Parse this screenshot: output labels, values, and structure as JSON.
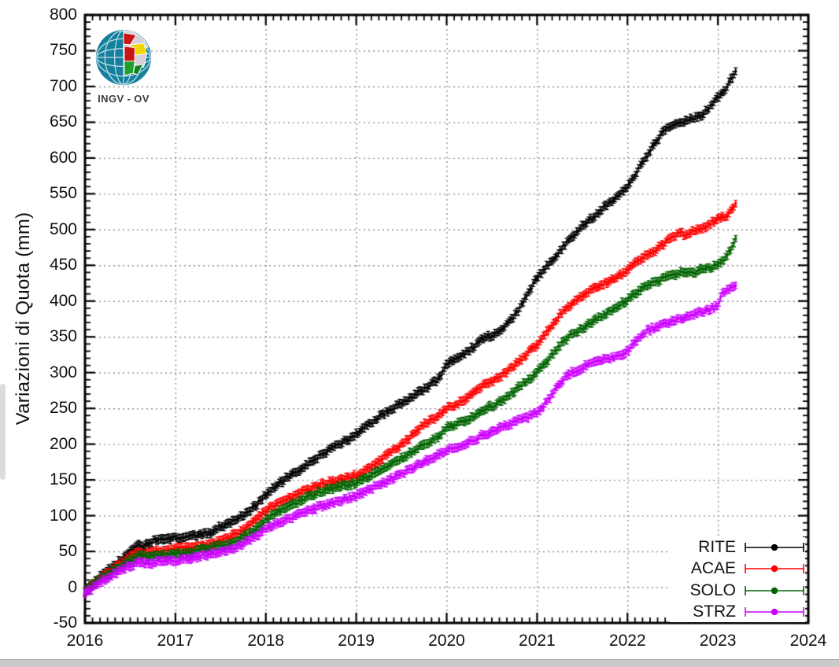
{
  "page": {
    "background": "#ffffff",
    "bottom_bar_color": "#cacaca",
    "scrollbar_color": "#dcdcdc"
  },
  "logo": {
    "text": "INGV - OV"
  },
  "chart_data": {
    "type": "scatter",
    "title": "",
    "xlabel": "",
    "ylabel": "Variazioni di Quota (mm)",
    "xlim": [
      2016,
      2024
    ],
    "ylim": [
      -50,
      800
    ],
    "x_ticks": [
      2016,
      2017,
      2018,
      2019,
      2020,
      2021,
      2022,
      2023,
      2024
    ],
    "y_ticks": [
      -50,
      0,
      50,
      100,
      150,
      200,
      250,
      300,
      350,
      400,
      450,
      500,
      550,
      600,
      650,
      700,
      750,
      800
    ],
    "x_minor_divisions": 12,
    "y_minor_divisions": 5,
    "grid": true,
    "grid_color": "#8e8e8e",
    "frame_color": "#000000",
    "legend_position": "bottom-right-inside",
    "marker_style": "point with vertical error bar (~±5 mm)",
    "series": [
      {
        "name": "RITE",
        "color": "#000000",
        "points": [
          [
            2016.0,
            -5
          ],
          [
            2016.1,
            6
          ],
          [
            2016.2,
            18
          ],
          [
            2016.3,
            28
          ],
          [
            2016.4,
            38
          ],
          [
            2016.5,
            50
          ],
          [
            2016.58,
            60
          ],
          [
            2016.64,
            56
          ],
          [
            2016.72,
            63
          ],
          [
            2016.8,
            66
          ],
          [
            2016.9,
            68
          ],
          [
            2017.0,
            69
          ],
          [
            2017.1,
            70
          ],
          [
            2017.2,
            72
          ],
          [
            2017.3,
            74
          ],
          [
            2017.4,
            77
          ],
          [
            2017.5,
            85
          ],
          [
            2017.6,
            90
          ],
          [
            2017.7,
            97
          ],
          [
            2017.8,
            105
          ],
          [
            2017.9,
            116
          ],
          [
            2018.0,
            130
          ],
          [
            2018.1,
            140
          ],
          [
            2018.2,
            150
          ],
          [
            2018.3,
            158
          ],
          [
            2018.4,
            166
          ],
          [
            2018.5,
            175
          ],
          [
            2018.6,
            184
          ],
          [
            2018.7,
            192
          ],
          [
            2018.8,
            199
          ],
          [
            2018.9,
            206
          ],
          [
            2019.0,
            214
          ],
          [
            2019.1,
            224
          ],
          [
            2019.2,
            233
          ],
          [
            2019.3,
            242
          ],
          [
            2019.4,
            250
          ],
          [
            2019.5,
            257
          ],
          [
            2019.6,
            265
          ],
          [
            2019.7,
            273
          ],
          [
            2019.8,
            281
          ],
          [
            2019.9,
            290
          ],
          [
            2019.95,
            300
          ],
          [
            2020.0,
            312
          ],
          [
            2020.1,
            320
          ],
          [
            2020.2,
            327
          ],
          [
            2020.3,
            336
          ],
          [
            2020.4,
            348
          ],
          [
            2020.5,
            352
          ],
          [
            2020.6,
            358
          ],
          [
            2020.7,
            372
          ],
          [
            2020.8,
            388
          ],
          [
            2020.9,
            410
          ],
          [
            2021.0,
            433
          ],
          [
            2021.1,
            448
          ],
          [
            2021.2,
            462
          ],
          [
            2021.3,
            478
          ],
          [
            2021.4,
            492
          ],
          [
            2021.5,
            505
          ],
          [
            2021.6,
            515
          ],
          [
            2021.7,
            527
          ],
          [
            2021.8,
            538
          ],
          [
            2021.9,
            548
          ],
          [
            2022.0,
            561
          ],
          [
            2022.1,
            580
          ],
          [
            2022.2,
            600
          ],
          [
            2022.3,
            620
          ],
          [
            2022.4,
            638
          ],
          [
            2022.5,
            648
          ],
          [
            2022.6,
            650
          ],
          [
            2022.7,
            655
          ],
          [
            2022.8,
            658
          ],
          [
            2022.9,
            670
          ],
          [
            2023.0,
            686
          ],
          [
            2023.05,
            690
          ],
          [
            2023.1,
            700
          ],
          [
            2023.15,
            712
          ],
          [
            2023.2,
            722
          ]
        ]
      },
      {
        "name": "ACAE",
        "color": "#ff0000",
        "points": [
          [
            2016.0,
            -5
          ],
          [
            2016.1,
            5
          ],
          [
            2016.2,
            15
          ],
          [
            2016.3,
            24
          ],
          [
            2016.4,
            33
          ],
          [
            2016.5,
            42
          ],
          [
            2016.58,
            50
          ],
          [
            2016.65,
            46
          ],
          [
            2016.75,
            49
          ],
          [
            2016.9,
            52
          ],
          [
            2017.0,
            54
          ],
          [
            2017.2,
            56
          ],
          [
            2017.4,
            60
          ],
          [
            2017.5,
            65
          ],
          [
            2017.6,
            70
          ],
          [
            2017.7,
            76
          ],
          [
            2017.8,
            84
          ],
          [
            2017.9,
            95
          ],
          [
            2018.0,
            108
          ],
          [
            2018.2,
            122
          ],
          [
            2018.4,
            133
          ],
          [
            2018.5,
            138
          ],
          [
            2018.6,
            143
          ],
          [
            2018.8,
            150
          ],
          [
            2019.0,
            156
          ],
          [
            2019.2,
            172
          ],
          [
            2019.4,
            190
          ],
          [
            2019.5,
            200
          ],
          [
            2019.6,
            210
          ],
          [
            2019.7,
            222
          ],
          [
            2019.8,
            232
          ],
          [
            2019.9,
            238
          ],
          [
            2019.95,
            245
          ],
          [
            2020.0,
            250
          ],
          [
            2020.1,
            255
          ],
          [
            2020.2,
            262
          ],
          [
            2020.3,
            272
          ],
          [
            2020.4,
            282
          ],
          [
            2020.5,
            288
          ],
          [
            2020.6,
            295
          ],
          [
            2020.7,
            305
          ],
          [
            2020.8,
            315
          ],
          [
            2020.9,
            328
          ],
          [
            2021.0,
            340
          ],
          [
            2021.1,
            355
          ],
          [
            2021.2,
            372
          ],
          [
            2021.3,
            388
          ],
          [
            2021.4,
            398
          ],
          [
            2021.5,
            408
          ],
          [
            2021.6,
            415
          ],
          [
            2021.7,
            422
          ],
          [
            2021.8,
            428
          ],
          [
            2021.9,
            435
          ],
          [
            2022.0,
            443
          ],
          [
            2022.1,
            455
          ],
          [
            2022.2,
            463
          ],
          [
            2022.3,
            470
          ],
          [
            2022.4,
            480
          ],
          [
            2022.5,
            490
          ],
          [
            2022.6,
            495
          ],
          [
            2022.65,
            492
          ],
          [
            2022.7,
            497
          ],
          [
            2022.8,
            500
          ],
          [
            2022.9,
            507
          ],
          [
            2023.0,
            515
          ],
          [
            2023.1,
            520
          ],
          [
            2023.15,
            528
          ],
          [
            2023.2,
            536
          ]
        ]
      },
      {
        "name": "SOLO",
        "color": "#006400",
        "points": [
          [
            2016.0,
            -6
          ],
          [
            2016.1,
            4
          ],
          [
            2016.2,
            13
          ],
          [
            2016.3,
            21
          ],
          [
            2016.4,
            30
          ],
          [
            2016.5,
            38
          ],
          [
            2016.6,
            44
          ],
          [
            2016.7,
            42
          ],
          [
            2016.8,
            44
          ],
          [
            2017.0,
            46
          ],
          [
            2017.2,
            50
          ],
          [
            2017.4,
            55
          ],
          [
            2017.5,
            58
          ],
          [
            2017.6,
            62
          ],
          [
            2017.7,
            67
          ],
          [
            2017.8,
            73
          ],
          [
            2017.9,
            83
          ],
          [
            2018.0,
            95
          ],
          [
            2018.2,
            110
          ],
          [
            2018.4,
            122
          ],
          [
            2018.5,
            128
          ],
          [
            2018.6,
            133
          ],
          [
            2018.8,
            140
          ],
          [
            2019.0,
            146
          ],
          [
            2019.2,
            158
          ],
          [
            2019.4,
            172
          ],
          [
            2019.5,
            180
          ],
          [
            2019.6,
            188
          ],
          [
            2019.7,
            196
          ],
          [
            2019.8,
            203
          ],
          [
            2019.9,
            210
          ],
          [
            2020.0,
            222
          ],
          [
            2020.1,
            228
          ],
          [
            2020.2,
            232
          ],
          [
            2020.3,
            240
          ],
          [
            2020.4,
            248
          ],
          [
            2020.5,
            253
          ],
          [
            2020.6,
            260
          ],
          [
            2020.7,
            270
          ],
          [
            2020.8,
            280
          ],
          [
            2020.9,
            290
          ],
          [
            2021.0,
            300
          ],
          [
            2021.1,
            315
          ],
          [
            2021.2,
            330
          ],
          [
            2021.3,
            345
          ],
          [
            2021.4,
            355
          ],
          [
            2021.5,
            362
          ],
          [
            2021.6,
            370
          ],
          [
            2021.7,
            378
          ],
          [
            2021.8,
            385
          ],
          [
            2021.9,
            394
          ],
          [
            2022.0,
            402
          ],
          [
            2022.1,
            412
          ],
          [
            2022.2,
            420
          ],
          [
            2022.3,
            426
          ],
          [
            2022.4,
            432
          ],
          [
            2022.5,
            436
          ],
          [
            2022.6,
            440
          ],
          [
            2022.7,
            442
          ],
          [
            2022.75,
            440
          ],
          [
            2022.8,
            444
          ],
          [
            2022.9,
            446
          ],
          [
            2023.0,
            450
          ],
          [
            2023.1,
            462
          ],
          [
            2023.15,
            475
          ],
          [
            2023.2,
            488
          ]
        ]
      },
      {
        "name": "STRZ",
        "color": "#cc00ff",
        "points": [
          [
            2016.0,
            -8
          ],
          [
            2016.1,
            0
          ],
          [
            2016.2,
            9
          ],
          [
            2016.3,
            16
          ],
          [
            2016.4,
            24
          ],
          [
            2016.5,
            30
          ],
          [
            2016.6,
            35
          ],
          [
            2016.7,
            33
          ],
          [
            2016.8,
            35
          ],
          [
            2017.0,
            37
          ],
          [
            2017.2,
            41
          ],
          [
            2017.4,
            46
          ],
          [
            2017.5,
            49
          ],
          [
            2017.6,
            53
          ],
          [
            2017.7,
            58
          ],
          [
            2017.8,
            64
          ],
          [
            2017.9,
            72
          ],
          [
            2018.0,
            81
          ],
          [
            2018.2,
            93
          ],
          [
            2018.4,
            103
          ],
          [
            2018.5,
            108
          ],
          [
            2018.6,
            113
          ],
          [
            2018.8,
            120
          ],
          [
            2019.0,
            128
          ],
          [
            2019.2,
            140
          ],
          [
            2019.4,
            152
          ],
          [
            2019.5,
            158
          ],
          [
            2019.6,
            165
          ],
          [
            2019.7,
            172
          ],
          [
            2019.8,
            179
          ],
          [
            2019.9,
            184
          ],
          [
            2020.0,
            191
          ],
          [
            2020.1,
            196
          ],
          [
            2020.2,
            200
          ],
          [
            2020.3,
            206
          ],
          [
            2020.4,
            212
          ],
          [
            2020.5,
            217
          ],
          [
            2020.6,
            223
          ],
          [
            2020.7,
            228
          ],
          [
            2020.8,
            233
          ],
          [
            2020.9,
            238
          ],
          [
            2021.0,
            244
          ],
          [
            2021.1,
            258
          ],
          [
            2021.2,
            275
          ],
          [
            2021.3,
            292
          ],
          [
            2021.4,
            301
          ],
          [
            2021.5,
            307
          ],
          [
            2021.6,
            312
          ],
          [
            2021.7,
            316
          ],
          [
            2021.8,
            320
          ],
          [
            2021.9,
            324
          ],
          [
            2022.0,
            330
          ],
          [
            2022.1,
            345
          ],
          [
            2022.2,
            357
          ],
          [
            2022.3,
            363
          ],
          [
            2022.4,
            368
          ],
          [
            2022.5,
            372
          ],
          [
            2022.6,
            375
          ],
          [
            2022.7,
            380
          ],
          [
            2022.8,
            384
          ],
          [
            2022.9,
            388
          ],
          [
            2023.0,
            394
          ],
          [
            2023.05,
            410
          ],
          [
            2023.1,
            415
          ],
          [
            2023.2,
            420
          ]
        ]
      }
    ]
  }
}
